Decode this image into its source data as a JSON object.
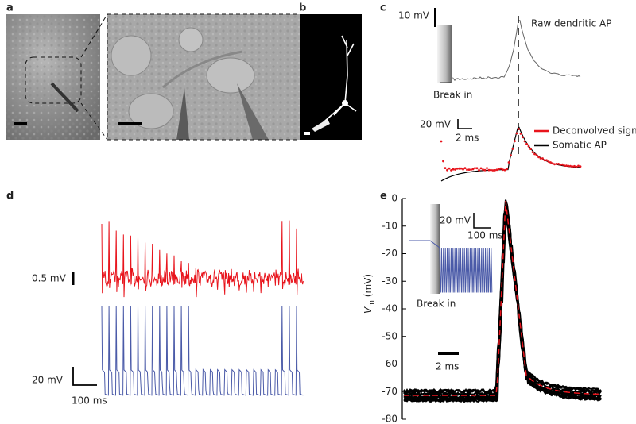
{
  "panels": {
    "a": {
      "label": "a"
    },
    "b": {
      "label": "b"
    },
    "c": {
      "label": "c",
      "scale_top": "10 mV",
      "raw_label": "Raw dendritic AP",
      "break_in": "Break in",
      "scale_v": "20 mV",
      "scale_t": "2 ms",
      "legend": [
        {
          "name": "Deconvolved signal",
          "color": "#e8141c"
        },
        {
          "name": "Somatic AP",
          "color": "#000000"
        }
      ]
    },
    "d": {
      "label": "d",
      "scale_red": "0.5 mV",
      "scale_blue_v": "20 mV",
      "scale_blue_t": "100 ms",
      "red_color": "#e8141c",
      "blue_color": "#4a5aa8"
    },
    "e": {
      "label": "e",
      "ylabel": {
        "main": "V",
        "sub": "m",
        "unit": " (mV)"
      },
      "ylim": [
        -80,
        0
      ],
      "yticks": [
        0,
        -10,
        -20,
        -30,
        -40,
        -50,
        -60,
        -70,
        -80
      ],
      "inset_v": "20 mV",
      "inset_t": "100 ms",
      "break_in": "Break in",
      "scale_t": "2 ms"
    }
  }
}
